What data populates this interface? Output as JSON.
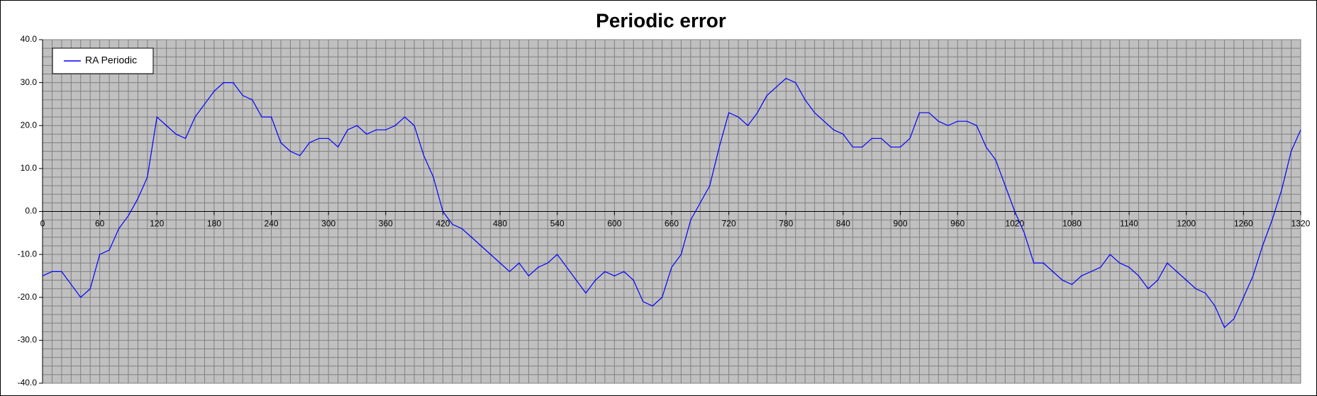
{
  "chart_data": {
    "type": "line",
    "title": "Periodic error",
    "x": [
      0,
      10,
      20,
      30,
      40,
      50,
      60,
      70,
      80,
      90,
      100,
      110,
      120,
      130,
      140,
      150,
      160,
      170,
      180,
      190,
      200,
      210,
      220,
      230,
      240,
      250,
      260,
      270,
      280,
      290,
      300,
      310,
      320,
      330,
      340,
      350,
      360,
      370,
      380,
      390,
      400,
      410,
      420,
      430,
      440,
      450,
      460,
      470,
      480,
      490,
      500,
      510,
      520,
      530,
      540,
      550,
      560,
      570,
      580,
      590,
      600,
      610,
      620,
      630,
      640,
      650,
      660,
      670,
      680,
      690,
      700,
      710,
      720,
      730,
      740,
      750,
      760,
      770,
      780,
      790,
      800,
      810,
      820,
      830,
      840,
      850,
      860,
      870,
      880,
      890,
      900,
      910,
      920,
      930,
      940,
      950,
      960,
      970,
      980,
      990,
      1000,
      1010,
      1020,
      1030,
      1040,
      1050,
      1060,
      1070,
      1080,
      1090,
      1100,
      1110,
      1120,
      1130,
      1140,
      1150,
      1160,
      1170,
      1180,
      1190,
      1200,
      1210,
      1220,
      1230,
      1240,
      1250,
      1260,
      1270,
      1280,
      1290,
      1300,
      1310,
      1320
    ],
    "series": [
      {
        "name": "RA Periodic",
        "color": "#0000ff",
        "values": [
          -15,
          -14,
          -14,
          -17,
          -20,
          -18,
          -10,
          -9,
          -4,
          -1,
          3,
          8,
          22,
          20,
          18,
          17,
          22,
          25,
          28,
          30,
          30,
          27,
          26,
          22,
          22,
          16,
          14,
          13,
          16,
          17,
          17,
          15,
          19,
          20,
          18,
          19,
          19,
          20,
          22,
          20,
          13,
          8,
          0,
          -3,
          -4,
          -6,
          -8,
          -10,
          -12,
          -14,
          -12,
          -15,
          -13,
          -12,
          -10,
          -13,
          -16,
          -19,
          -16,
          -14,
          -15,
          -14,
          -16,
          -21,
          -22,
          -20,
          -13,
          -10,
          -2,
          2,
          6,
          15,
          23,
          22,
          20,
          23,
          27,
          29,
          31,
          30,
          26,
          23,
          21,
          19,
          18,
          15,
          15,
          17,
          17,
          15,
          15,
          17,
          23,
          23,
          21,
          20,
          21,
          21,
          20,
          15,
          12,
          6,
          0,
          -5,
          -12,
          -12,
          -14,
          -16,
          -17,
          -15,
          -14,
          -13,
          -10,
          -12,
          -13,
          -15,
          -18,
          -16,
          -12,
          -14,
          -16,
          -18,
          -19,
          -22,
          -27,
          -25,
          -20,
          -15,
          -8,
          -2,
          5,
          14,
          19
        ]
      }
    ],
    "xlim": [
      0,
      1320
    ],
    "xticks": [
      0,
      60,
      120,
      180,
      240,
      300,
      360,
      420,
      480,
      540,
      600,
      660,
      720,
      780,
      840,
      900,
      960,
      1020,
      1080,
      1140,
      1200,
      1260,
      1320
    ],
    "ylim": [
      -40,
      40
    ],
    "yticks": [
      {
        "value": 40,
        "label": "40.0"
      },
      {
        "value": 30,
        "label": "30.0"
      },
      {
        "value": 20,
        "label": "20.0"
      },
      {
        "value": 10,
        "label": "10.0"
      },
      {
        "value": 0,
        "label": "0.0"
      },
      {
        "value": -10,
        "label": "-10.0"
      },
      {
        "value": -20,
        "label": "-20.0"
      },
      {
        "value": -30,
        "label": "-30.0"
      },
      {
        "value": -40,
        "label": "-40.0"
      }
    ],
    "grid": true,
    "minor_grid": {
      "x": 10,
      "y": 2
    },
    "legend": "upper left",
    "background": "#c0c0c0"
  }
}
